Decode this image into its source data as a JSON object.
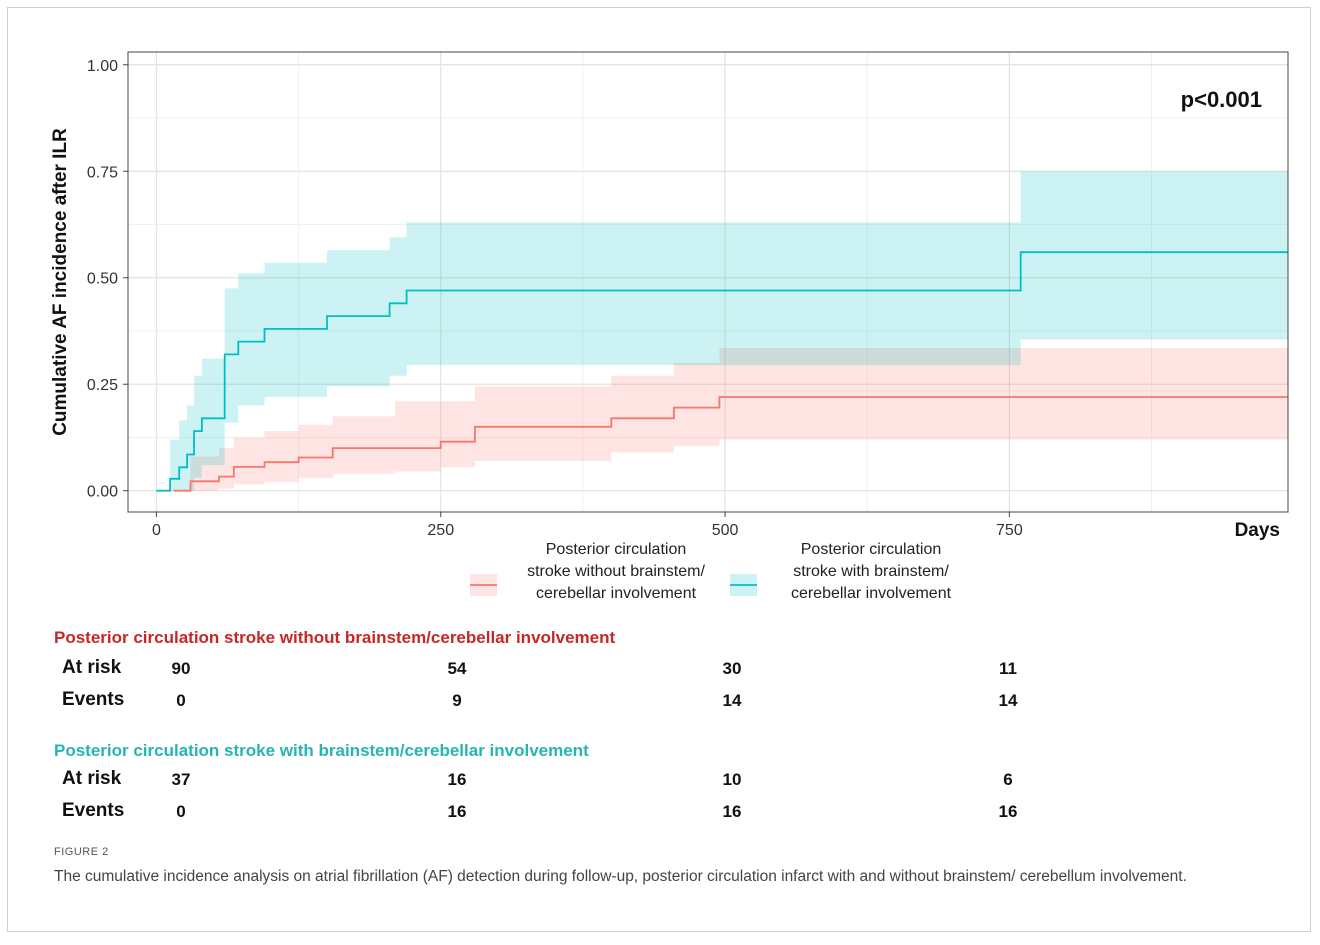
{
  "figure_label": "FIGURE 2",
  "caption": "The cumulative incidence analysis on atrial fibrillation (AF) detection during follow-up, posterior circulation infarct with and without brainstem/ cerebellum involvement.",
  "colors": {
    "red": "#F8766D",
    "teal": "#00BFC4",
    "red_title": "#C62828",
    "teal_title": "#26B5B0"
  },
  "chart_data": {
    "type": "line",
    "step": true,
    "ylabel": "Cumulative AF incidence after ILR",
    "xlabel": "Days",
    "annotation": "p<0.001",
    "xlim": [
      -25,
      995
    ],
    "ylim": [
      -0.05,
      1.03
    ],
    "x_ticks": [
      0,
      250,
      500,
      750
    ],
    "x_tick_labels": [
      "0",
      "250",
      "500",
      "750"
    ],
    "y_ticks": [
      0,
      0.25,
      0.5,
      0.75,
      1.0
    ],
    "y_tick_labels": [
      "0.00",
      "0.25",
      "0.50",
      "0.75",
      "1.00"
    ],
    "grid": true,
    "legend_position": "bottom",
    "series": [
      {
        "name": "Posterior circulation stroke without brainstem/ cerebellar involvement",
        "legend_lines": [
          "Posterior circulation",
          "stroke without brainstem/",
          "cerebellar involvement"
        ],
        "color_key": "red",
        "x": [
          15,
          30,
          55,
          68,
          95,
          125,
          155,
          210,
          250,
          280,
          400,
          455,
          495,
          995
        ],
        "y": [
          0,
          0.022,
          0.033,
          0.056,
          0.067,
          0.078,
          0.1,
          0.1,
          0.115,
          0.15,
          0.17,
          0.195,
          0.22,
          0.22
        ],
        "lower": [
          0,
          0.0,
          0.005,
          0.015,
          0.02,
          0.03,
          0.04,
          0.045,
          0.055,
          0.07,
          0.09,
          0.105,
          0.12,
          0.12
        ],
        "upper": [
          0,
          0.08,
          0.1,
          0.125,
          0.14,
          0.155,
          0.175,
          0.21,
          0.21,
          0.245,
          0.27,
          0.3,
          0.335,
          0.335
        ]
      },
      {
        "name": "Posterior circulation stroke with brainstem/ cerebellar involvement",
        "legend_lines": [
          "Posterior circulation",
          "stroke with brainstem/",
          "cerebellar involvement"
        ],
        "color_key": "teal",
        "x": [
          0,
          12,
          20,
          27,
          33,
          40,
          60,
          72,
          95,
          150,
          205,
          220,
          760,
          995
        ],
        "y": [
          0,
          0.028,
          0.055,
          0.085,
          0.14,
          0.17,
          0.32,
          0.35,
          0.38,
          0.41,
          0.44,
          0.47,
          0.56,
          0.56
        ],
        "lower": [
          0,
          0.0,
          0.0,
          0.0,
          0.03,
          0.06,
          0.16,
          0.2,
          0.22,
          0.245,
          0.27,
          0.295,
          0.355,
          0.355
        ],
        "upper": [
          0,
          0.12,
          0.165,
          0.2,
          0.27,
          0.31,
          0.475,
          0.51,
          0.535,
          0.565,
          0.595,
          0.63,
          0.75,
          0.75
        ]
      }
    ]
  },
  "risk_table": {
    "groups": [
      {
        "title": "Posterior circulation stroke without brainstem/cerebellar involvement",
        "color_key": "red_title",
        "rows": [
          {
            "label": "At risk",
            "values": [
              "90",
              "54",
              "30",
              "11"
            ]
          },
          {
            "label": "Events",
            "values": [
              "0",
              "9",
              "14",
              "14"
            ]
          }
        ]
      },
      {
        "title": "Posterior circulation stroke with brainstem/cerebellar involvement",
        "color_key": "teal_title",
        "rows": [
          {
            "label": "At risk",
            "values": [
              "37",
              "16",
              "10",
              "6"
            ]
          },
          {
            "label": "Events",
            "values": [
              "0",
              "16",
              "16",
              "16"
            ]
          }
        ]
      }
    ]
  }
}
